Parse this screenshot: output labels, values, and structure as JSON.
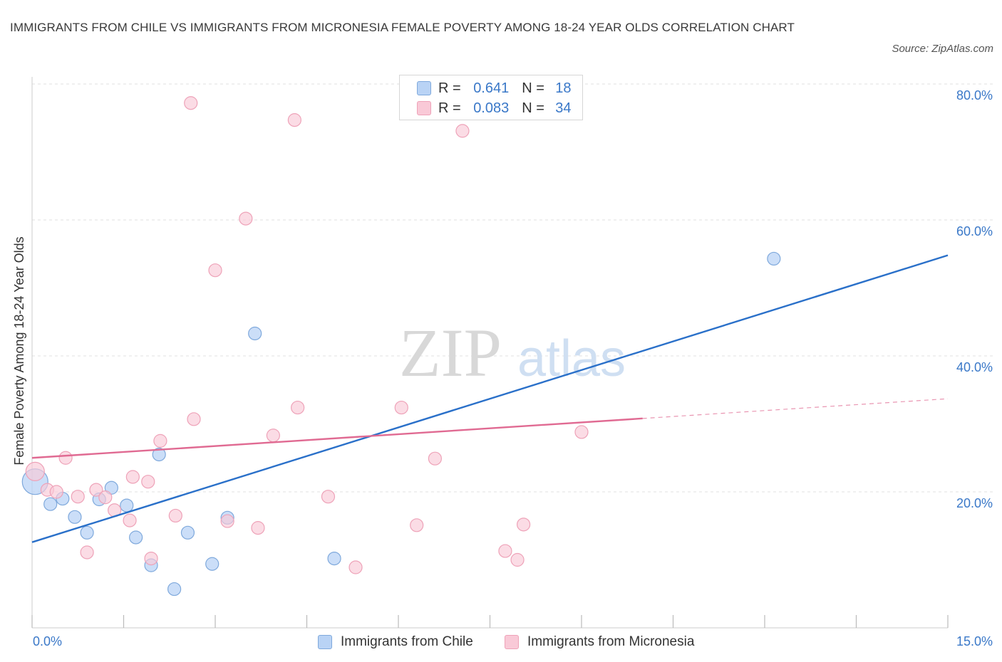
{
  "title": "IMMIGRANTS FROM CHILE VS IMMIGRANTS FROM MICRONESIA FEMALE POVERTY AMONG 18-24 YEAR OLDS CORRELATION CHART",
  "source": "Source: ZipAtlas.com",
  "watermark": {
    "zip": "ZIP",
    "atlas": "atlas"
  },
  "legend": {
    "r_label": "R =",
    "n_label": "N =",
    "rows": [
      {
        "r": "0.641",
        "n": "18"
      },
      {
        "r": "0.083",
        "n": "34"
      }
    ]
  },
  "colors": {
    "chile_fill": "#b9d3f5",
    "chile_stroke": "#7fa9dc",
    "chile_line": "#2a70c9",
    "micronesia_fill": "#f9c9d7",
    "micronesia_stroke": "#eea2b8",
    "micronesia_line": "#e06a92",
    "tick_text": "#3a78c8",
    "grid": "#e2e2e2"
  },
  "chart_data": {
    "type": "scatter",
    "xlabel": "",
    "ylabel": "Female Poverty Among 18-24 Year Olds",
    "xlim": [
      0,
      15
    ],
    "ylim": [
      0,
      80
    ],
    "x_tick_labels": [
      "0.0%",
      "15.0%"
    ],
    "y_ticks": [
      20,
      40,
      60,
      80
    ],
    "y_tick_labels": [
      "20.0%",
      "40.0%",
      "60.0%",
      "80.0%"
    ],
    "grid": true,
    "legend_position": "top-center",
    "series": [
      {
        "name": "Immigrants from Chile",
        "points": [
          [
            0.05,
            21.5
          ],
          [
            0.3,
            18.2
          ],
          [
            0.5,
            19.0
          ],
          [
            0.7,
            16.3
          ],
          [
            0.9,
            14.0
          ],
          [
            1.1,
            18.9
          ],
          [
            1.3,
            20.6
          ],
          [
            1.55,
            18.0
          ],
          [
            1.7,
            13.3
          ],
          [
            1.95,
            9.2
          ],
          [
            2.08,
            25.5
          ],
          [
            2.33,
            5.7
          ],
          [
            2.55,
            14.0
          ],
          [
            2.95,
            9.4
          ],
          [
            3.2,
            16.2
          ],
          [
            3.65,
            43.3
          ],
          [
            4.95,
            10.2
          ],
          [
            12.15,
            54.3
          ]
        ],
        "trend": [
          [
            0,
            12.6
          ],
          [
            15,
            54.8
          ]
        ]
      },
      {
        "name": "Immigrants from Micronesia",
        "points": [
          [
            0.05,
            23.0
          ],
          [
            0.25,
            20.3
          ],
          [
            0.4,
            20.0
          ],
          [
            0.55,
            25.0
          ],
          [
            0.75,
            19.3
          ],
          [
            0.9,
            11.1
          ],
          [
            1.05,
            20.3
          ],
          [
            1.2,
            19.2
          ],
          [
            1.35,
            17.3
          ],
          [
            1.6,
            15.8
          ],
          [
            1.65,
            22.2
          ],
          [
            1.9,
            21.5
          ],
          [
            1.95,
            10.2
          ],
          [
            2.1,
            27.5
          ],
          [
            2.35,
            16.5
          ],
          [
            2.6,
            77.2
          ],
          [
            2.65,
            30.7
          ],
          [
            3.0,
            52.6
          ],
          [
            3.2,
            15.7
          ],
          [
            3.5,
            60.2
          ],
          [
            3.7,
            14.7
          ],
          [
            3.95,
            28.3
          ],
          [
            4.3,
            74.7
          ],
          [
            4.35,
            32.4
          ],
          [
            4.85,
            19.3
          ],
          [
            5.3,
            8.9
          ],
          [
            6.05,
            32.4
          ],
          [
            6.3,
            15.1
          ],
          [
            6.6,
            24.9
          ],
          [
            7.05,
            73.1
          ],
          [
            7.75,
            11.3
          ],
          [
            7.95,
            10.0
          ],
          [
            8.05,
            15.2
          ],
          [
            9.0,
            28.8
          ]
        ],
        "trend": [
          [
            0,
            25.0
          ],
          [
            10,
            30.8
          ]
        ],
        "trend_dashed": [
          [
            10,
            30.8
          ],
          [
            15,
            33.7
          ]
        ]
      }
    ]
  }
}
